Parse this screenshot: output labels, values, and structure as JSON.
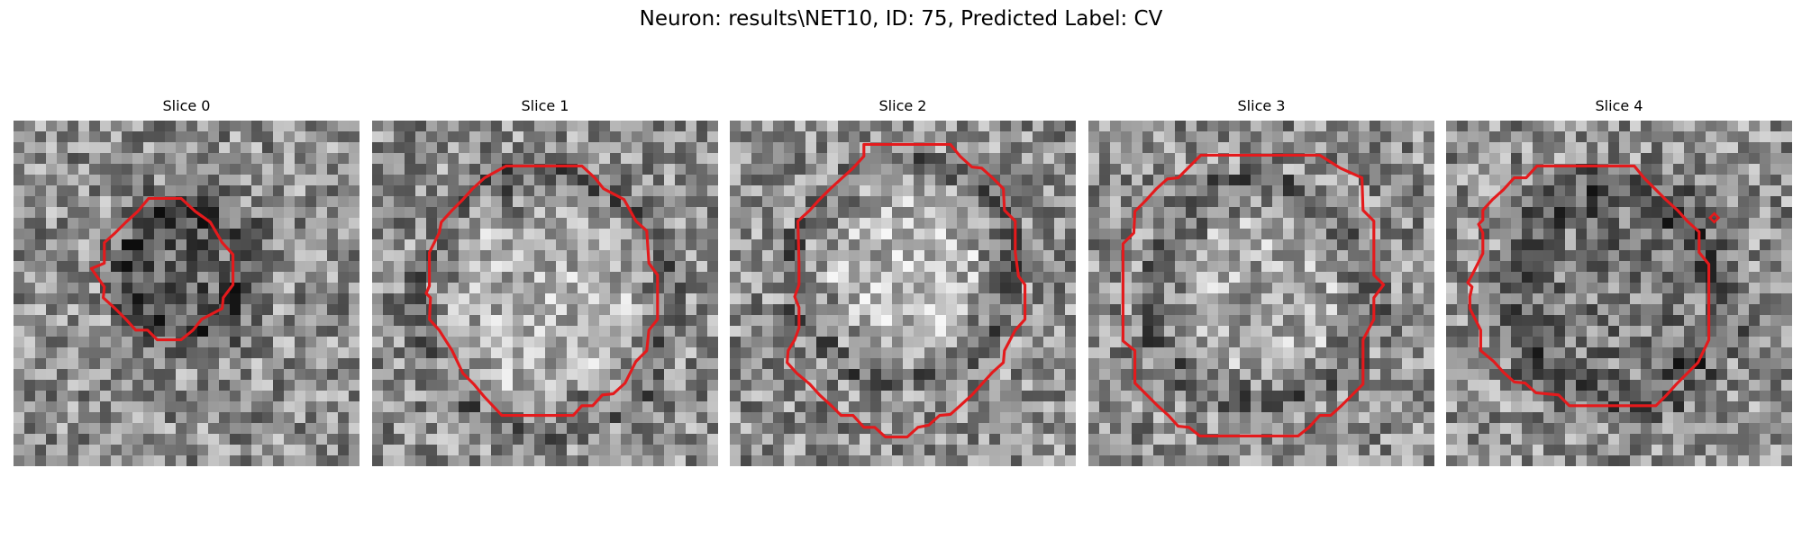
{
  "figure": {
    "suptitle": "Neuron: results\\NET10, ID: 75, Predicted Label: CV"
  },
  "panels": [
    {
      "title": "Slice 0",
      "contour_color": "#e41a1c"
    },
    {
      "title": "Slice 1",
      "contour_color": "#e41a1c"
    },
    {
      "title": "Slice 2",
      "contour_color": "#e41a1c"
    },
    {
      "title": "Slice 3",
      "contour_color": "#e41a1c"
    },
    {
      "title": "Slice 4",
      "contour_color": "#e41a1c"
    }
  ],
  "style": {
    "background": "#ffffff",
    "colormap": "gray"
  }
}
